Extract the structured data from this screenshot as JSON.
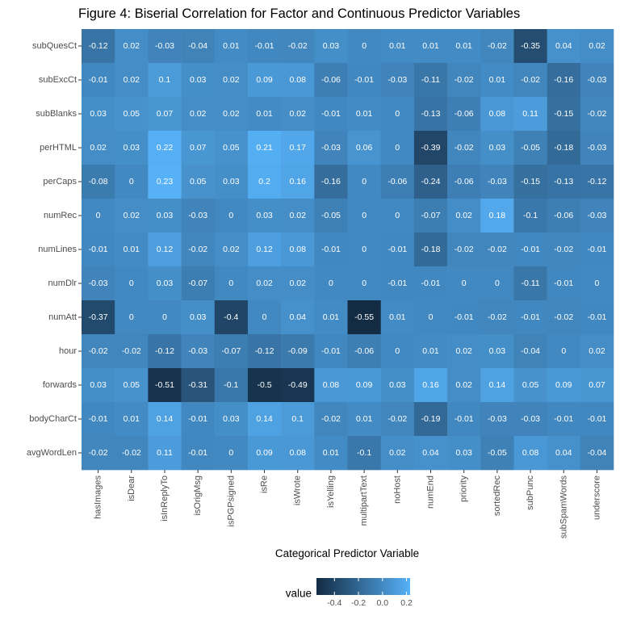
{
  "chart_data": {
    "type": "heatmap",
    "title": "Figure 4: Biserial Correlation for Factor and Continuous Predictor Variables",
    "xlabel": "Categorical Predictor Variable",
    "ylabel": "",
    "x_categories": [
      "hasImages",
      "isDear",
      "isInReplyTo",
      "isOrigMsg",
      "isPGPsigned",
      "isRe",
      "isWrote",
      "isYelling",
      "multipartText",
      "noHost",
      "numEnd",
      "priority",
      "sortedRec",
      "subPunc",
      "subSpamWords",
      "underscore"
    ],
    "y_categories": [
      "subQuesCt",
      "subExcCt",
      "subBlanks",
      "perHTML",
      "perCaps",
      "numRec",
      "numLines",
      "numDlr",
      "numAtt",
      "hour",
      "forwards",
      "bodyCharCt",
      "avgWordLen"
    ],
    "values": [
      [
        -0.12,
        0.02,
        -0.03,
        -0.04,
        0.01,
        -0.01,
        -0.02,
        0.03,
        0,
        0.01,
        0.01,
        0.01,
        -0.02,
        -0.35,
        0.04,
        0.02
      ],
      [
        -0.01,
        0.02,
        0.1,
        0.03,
        0.02,
        0.09,
        0.08,
        -0.06,
        -0.01,
        -0.03,
        -0.11,
        -0.02,
        0.01,
        -0.02,
        -0.16,
        -0.03
      ],
      [
        0.03,
        0.05,
        0.07,
        0.02,
        0.02,
        0.01,
        0.02,
        -0.01,
        0.01,
        0,
        -0.13,
        -0.06,
        0.08,
        0.11,
        -0.15,
        -0.02
      ],
      [
        0.02,
        0.03,
        0.22,
        0.07,
        0.05,
        0.21,
        0.17,
        -0.03,
        0.06,
        0,
        -0.39,
        -0.02,
        0.03,
        -0.05,
        -0.18,
        -0.03
      ],
      [
        -0.08,
        0,
        0.23,
        0.05,
        0.03,
        0.2,
        0.16,
        -0.16,
        0,
        -0.06,
        -0.24,
        -0.06,
        -0.03,
        -0.15,
        -0.13,
        -0.12
      ],
      [
        0,
        0.02,
        0.03,
        -0.03,
        0,
        0.03,
        0.02,
        -0.05,
        0,
        0,
        -0.07,
        0.02,
        0.18,
        -0.1,
        -0.06,
        -0.03
      ],
      [
        -0.01,
        0.01,
        0.12,
        -0.02,
        0.02,
        0.12,
        0.08,
        -0.01,
        0,
        -0.01,
        -0.18,
        -0.02,
        -0.02,
        -0.01,
        -0.02,
        -0.01
      ],
      [
        -0.03,
        0,
        0.03,
        -0.07,
        0,
        0.02,
        0.02,
        0,
        0,
        -0.01,
        -0.01,
        0,
        0,
        -0.11,
        -0.01,
        0
      ],
      [
        -0.37,
        0,
        0,
        0.03,
        -0.4,
        0,
        0.04,
        0.01,
        -0.55,
        0.01,
        0,
        -0.01,
        -0.02,
        -0.01,
        -0.02,
        -0.01
      ],
      [
        -0.02,
        -0.02,
        -0.12,
        -0.03,
        -0.07,
        -0.12,
        -0.09,
        -0.01,
        -0.06,
        0,
        0.01,
        0.02,
        0.03,
        -0.04,
        0,
        0.02
      ],
      [
        0.03,
        0.05,
        -0.51,
        -0.31,
        -0.1,
        -0.5,
        -0.49,
        0.08,
        0.09,
        0.03,
        0.16,
        0.02,
        0.14,
        0.05,
        0.09,
        0.07
      ],
      [
        -0.01,
        0.01,
        0.14,
        -0.01,
        0.03,
        0.14,
        0.1,
        -0.02,
        0.01,
        -0.02,
        -0.19,
        -0.01,
        -0.03,
        -0.03,
        -0.01,
        -0.01
      ],
      [
        -0.02,
        -0.02,
        0.11,
        -0.01,
        0,
        0.09,
        0.08,
        0.01,
        -0.1,
        0.02,
        0.04,
        0.03,
        -0.05,
        0.08,
        0.04,
        -0.04
      ]
    ],
    "value_range": [
      -0.55,
      0.23
    ],
    "legend": {
      "title": "value",
      "placement": "bottom",
      "ticks": [
        -0.4,
        -0.2,
        0.0,
        0.2
      ],
      "tick_labels": [
        "-0.4",
        "-0.2",
        "0.0",
        "0.2"
      ]
    },
    "colors": {
      "low": "#132B43",
      "high": "#56B1F7",
      "panel_background": "#EBEBEB"
    },
    "grid": true
  }
}
